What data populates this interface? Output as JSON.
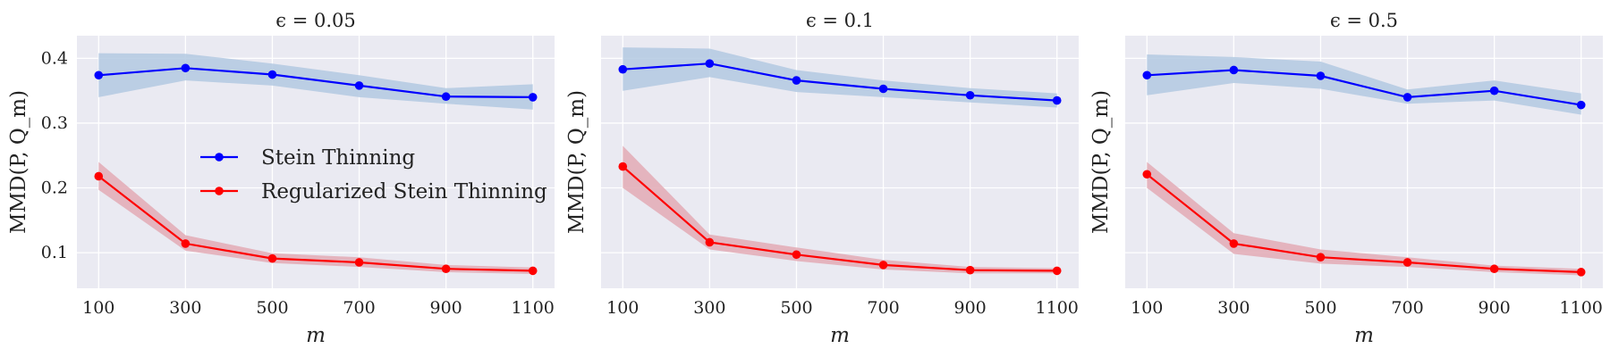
{
  "chart_data": [
    {
      "type": "line",
      "title": "ϵ = 0.05",
      "xlabel": "m",
      "ylabel": "MMD(P, Q_m)",
      "x": [
        100,
        300,
        500,
        700,
        900,
        1100
      ],
      "xlim": [
        50,
        1150
      ],
      "ylim": [
        0.045,
        0.435
      ],
      "yticks": [
        0.1,
        0.2,
        0.3,
        0.4
      ],
      "yticklabels": [
        "0.1",
        "0.2",
        "0.3",
        "0.4"
      ],
      "grid": true,
      "series": [
        {
          "name": "Stein Thinning",
          "color": "#0000ff",
          "band_color": "#b3c9e2",
          "values": [
            0.374,
            0.385,
            0.375,
            0.358,
            0.341,
            0.34
          ],
          "lower": [
            0.34,
            0.366,
            0.358,
            0.34,
            0.33,
            0.321
          ],
          "upper": [
            0.408,
            0.407,
            0.392,
            0.374,
            0.354,
            0.36
          ]
        },
        {
          "name": "Regularized Stein Thinning",
          "color": "#ff0000",
          "band_color": "#e3aab5",
          "values": [
            0.218,
            0.114,
            0.091,
            0.085,
            0.075,
            0.072
          ],
          "lower": [
            0.197,
            0.103,
            0.084,
            0.078,
            0.07,
            0.067
          ],
          "upper": [
            0.24,
            0.127,
            0.099,
            0.093,
            0.081,
            0.077
          ]
        }
      ],
      "legend": "center-right"
    },
    {
      "type": "line",
      "title": "ϵ = 0.1",
      "xlabel": "m",
      "ylabel": "MMD(P, Q_m)",
      "x": [
        100,
        300,
        500,
        700,
        900,
        1100
      ],
      "xlim": [
        50,
        1150
      ],
      "ylim": [
        0.045,
        0.435
      ],
      "yticks": [
        0.1,
        0.2,
        0.3,
        0.4
      ],
      "yticklabels": [],
      "grid": true,
      "series": [
        {
          "name": "Stein Thinning",
          "color": "#0000ff",
          "band_color": "#b3c9e2",
          "values": [
            0.383,
            0.392,
            0.366,
            0.353,
            0.343,
            0.335
          ],
          "lower": [
            0.35,
            0.371,
            0.348,
            0.34,
            0.332,
            0.324
          ],
          "upper": [
            0.417,
            0.415,
            0.382,
            0.366,
            0.354,
            0.346
          ]
        },
        {
          "name": "Regularized Stein Thinning",
          "color": "#ff0000",
          "band_color": "#e3aab5",
          "values": [
            0.233,
            0.116,
            0.097,
            0.081,
            0.073,
            0.072
          ],
          "lower": [
            0.2,
            0.105,
            0.087,
            0.074,
            0.068,
            0.068
          ],
          "upper": [
            0.265,
            0.128,
            0.108,
            0.089,
            0.078,
            0.076
          ]
        }
      ]
    },
    {
      "type": "line",
      "title": "ϵ = 0.5",
      "xlabel": "m",
      "ylabel": "MMD(P, Q_m)",
      "x": [
        100,
        300,
        500,
        700,
        900,
        1100
      ],
      "xlim": [
        50,
        1150
      ],
      "ylim": [
        0.045,
        0.435
      ],
      "yticks": [
        0.1,
        0.2,
        0.3,
        0.4
      ],
      "yticklabels": [],
      "grid": true,
      "series": [
        {
          "name": "Stein Thinning",
          "color": "#0000ff",
          "band_color": "#b3c9e2",
          "values": [
            0.374,
            0.382,
            0.373,
            0.34,
            0.35,
            0.328
          ],
          "lower": [
            0.343,
            0.362,
            0.353,
            0.33,
            0.335,
            0.313
          ],
          "upper": [
            0.406,
            0.402,
            0.395,
            0.352,
            0.366,
            0.346
          ]
        },
        {
          "name": "Regularized Stein Thinning",
          "color": "#ff0000",
          "band_color": "#e3aab5",
          "values": [
            0.221,
            0.114,
            0.093,
            0.085,
            0.075,
            0.07
          ],
          "lower": [
            0.2,
            0.098,
            0.083,
            0.078,
            0.07,
            0.065
          ],
          "upper": [
            0.24,
            0.13,
            0.105,
            0.093,
            0.08,
            0.075
          ]
        }
      ]
    }
  ]
}
